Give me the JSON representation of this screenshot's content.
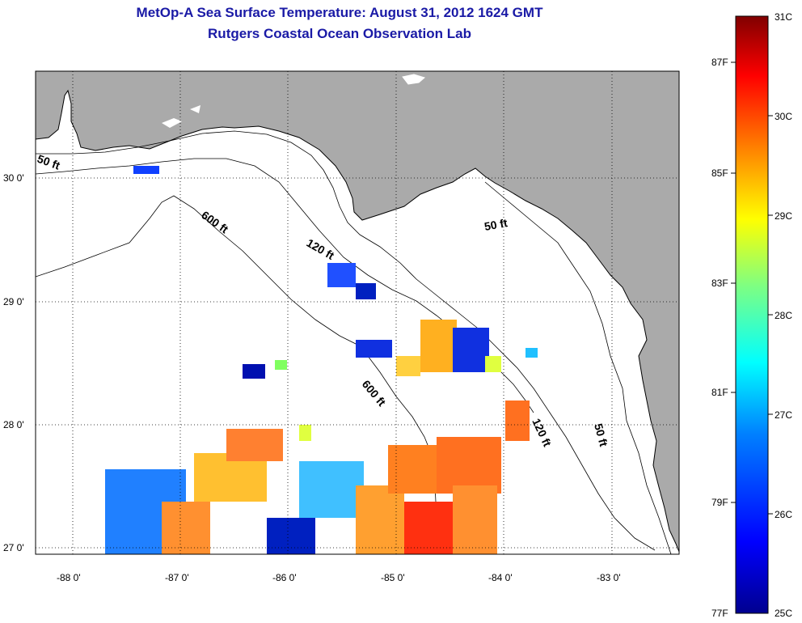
{
  "title": {
    "line1": "MetOp-A Sea Surface Temperature:  August 31, 2012 1624 GMT",
    "line2": "Rutgers Coastal Ocean Observation Lab"
  },
  "axes": {
    "lon_ticks": [
      "-88 0'",
      "-87 0'",
      "-86 0'",
      "-85 0'",
      "-84 0'",
      "-83 0'"
    ],
    "lat_ticks": [
      "30 0'",
      "29 0'",
      "28 0'",
      "27 0'"
    ]
  },
  "contours": {
    "label_50_west": "50 ft",
    "label_50_east": "50 ft",
    "label_50_south": "50 ft",
    "label_120": "120 ft",
    "label_120_south": "120 ft",
    "label_600": "600 ft",
    "label_600_south": "600 ft"
  },
  "colorbar": {
    "celsius": [
      "31C",
      "30C",
      "29C",
      "28C",
      "27C",
      "26C",
      "25C"
    ],
    "fahrenheit": [
      "87F",
      "85F",
      "83F",
      "81F",
      "79F",
      "77F"
    ],
    "colors": [
      "#00008f",
      "#0000ff",
      "#0080ff",
      "#00ffff",
      "#80ff80",
      "#ffff00",
      "#ff8000",
      "#ff0000",
      "#800000"
    ]
  },
  "colors": {
    "land": "#aaaaaa",
    "ocean": "#ffffff",
    "title": "#1a1aa6"
  }
}
